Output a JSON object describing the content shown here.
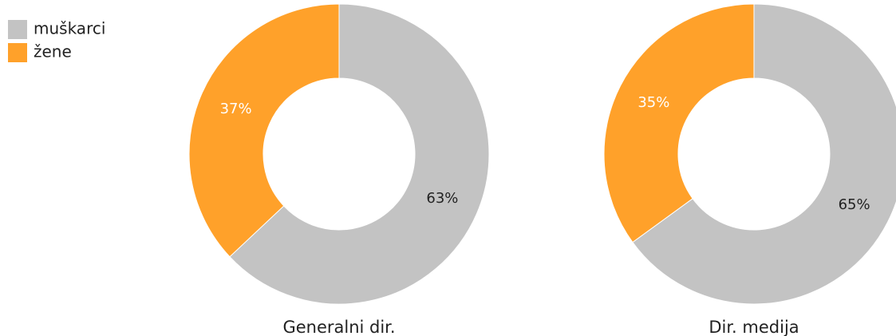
{
  "legend": [
    {
      "name": "muškarci",
      "color": "#c3c3c3",
      "label_color": "#222222"
    },
    {
      "name": "žene",
      "color": "#ffa12a",
      "label_color": "#ffffff"
    }
  ],
  "chart_data": [
    {
      "type": "donut",
      "title": "Generalni dir.",
      "values": [
        63,
        37
      ],
      "value_labels": [
        "63%",
        "37%"
      ]
    },
    {
      "type": "donut",
      "title": "Dir. medija",
      "values": [
        65,
        35
      ],
      "value_labels": [
        "65%",
        "35%"
      ]
    }
  ]
}
